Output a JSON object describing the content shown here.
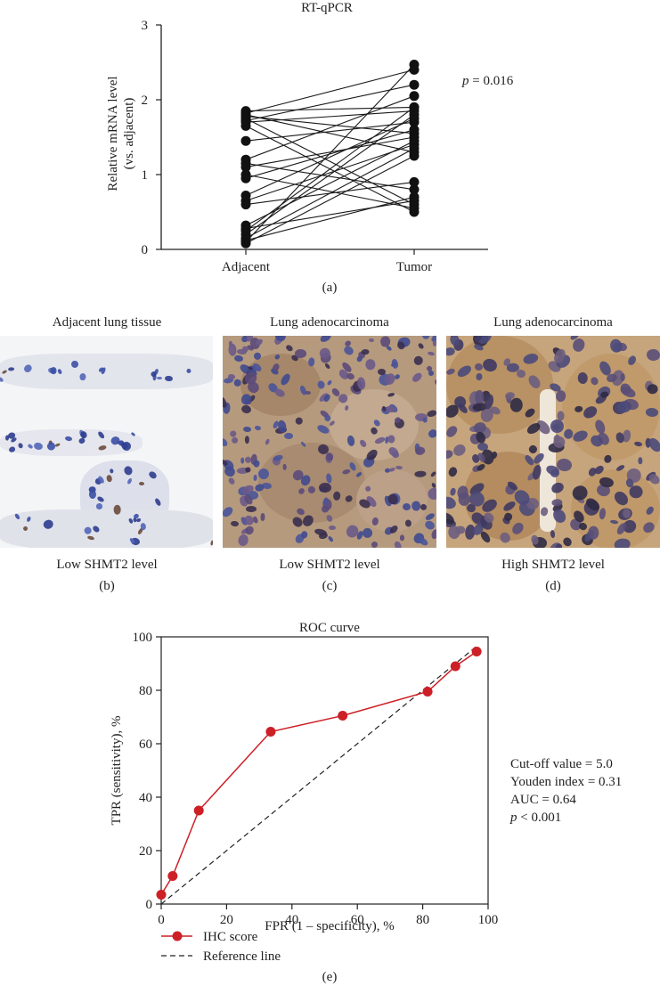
{
  "panel_a": {
    "title": "RT-qPCR",
    "ylabel_line1": "Relative mRNA level",
    "ylabel_line2": "(vs. adjacent)",
    "yticks": [
      "0",
      "1",
      "2",
      "3"
    ],
    "xticks": [
      "Adjacent",
      "Tumor"
    ],
    "pvalue_italic": "p",
    "pvalue_rest": " = 0.016",
    "caption": "(a)"
  },
  "panel_b": {
    "title": "Adjacent lung tissue",
    "label": "Low SHMT2 level",
    "caption": "(b)"
  },
  "panel_c": {
    "title": "Lung adenocarcinoma",
    "label": "Low SHMT2 level",
    "caption": "(c)"
  },
  "panel_d": {
    "title": "Lung adenocarcinoma",
    "label": "High SHMT2 level",
    "caption": "(d)"
  },
  "panel_e": {
    "title": "ROC curve",
    "xlabel": "FPR (1 – specificity), %",
    "ylabel": "TPR (sensitivity), %",
    "xticks": [
      "0",
      "20",
      "40",
      "60",
      "80",
      "100"
    ],
    "yticks": [
      "0",
      "20",
      "40",
      "60",
      "80",
      "100"
    ],
    "stats": {
      "cutoff": "Cut-off value = 5.0",
      "youden": "Youden index = 0.31",
      "auc": "AUC = 0.64",
      "p_italic": "p",
      "p_rest": " < 0.001"
    },
    "legend": {
      "ihc": "IHC score",
      "ref": "Reference line"
    },
    "caption": "(e)"
  },
  "colors": {
    "roc_line": "#cc1f26",
    "points": "#111111",
    "tissue_bg_b": "#f4f5f7",
    "tissue_bg_c": "#b59a7e",
    "tissue_bg_d": "#c6a57d"
  },
  "chart_data": [
    {
      "type": "scatter",
      "title": "RT-qPCR",
      "ylabel": "Relative mRNA level (vs. adjacent)",
      "categories": [
        "Adjacent",
        "Tumor"
      ],
      "ylim": [
        0,
        3
      ],
      "pairs": [
        [
          1.85,
          1.9
        ],
        [
          1.82,
          2.4
        ],
        [
          1.8,
          1.3
        ],
        [
          1.78,
          1.55
        ],
        [
          1.75,
          0.6
        ],
        [
          1.72,
          2.2
        ],
        [
          1.7,
          1.85
        ],
        [
          1.65,
          0.5
        ],
        [
          1.45,
          1.7
        ],
        [
          1.2,
          2.05
        ],
        [
          1.15,
          0.8
        ],
        [
          1.1,
          1.5
        ],
        [
          1.0,
          0.55
        ],
        [
          0.95,
          1.6
        ],
        [
          0.72,
          1.75
        ],
        [
          0.65,
          1.4
        ],
        [
          0.6,
          0.9
        ],
        [
          0.32,
          1.45
        ],
        [
          0.28,
          0.65
        ],
        [
          0.25,
          1.9
        ],
        [
          0.2,
          1.8
        ],
        [
          0.15,
          1.35
        ],
        [
          0.12,
          0.7
        ],
        [
          0.1,
          2.47
        ],
        [
          0.08,
          1.25
        ]
      ],
      "annotation": "p = 0.016"
    },
    {
      "type": "line",
      "title": "ROC curve",
      "xlabel": "FPR (1 – specificity), %",
      "ylabel": "TPR (sensitivity), %",
      "xlim": [
        0,
        100
      ],
      "ylim": [
        0,
        100
      ],
      "series": [
        {
          "name": "IHC score",
          "x": [
            0,
            3.5,
            11.5,
            33.5,
            55.5,
            81.5,
            90,
            96.5
          ],
          "y": [
            3.5,
            10.5,
            35,
            64.5,
            70.5,
            79.5,
            89,
            94.5
          ]
        },
        {
          "name": "Reference line",
          "x": [
            0,
            96.5
          ],
          "y": [
            0,
            96.5
          ]
        }
      ],
      "legend": "bottom-left",
      "annotations": [
        "Cut-off value = 5.0",
        "Youden index = 0.31",
        "AUC = 0.64",
        "p < 0.001"
      ]
    }
  ]
}
